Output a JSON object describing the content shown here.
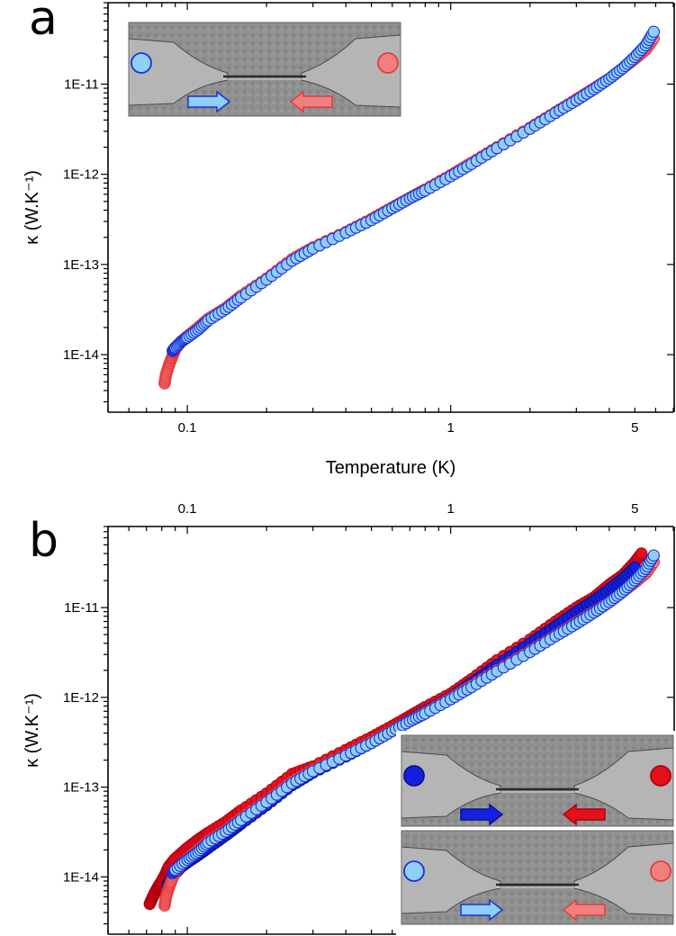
{
  "colors": {
    "red_light": "#f08080",
    "red_light_edge": "#e43b3b",
    "blue_light": "#8fd0f8",
    "blue_light_edge": "#1b2fd6",
    "red_dark": "#e4101a",
    "red_dark_edge": "#b00010",
    "blue_dark": "#1420e0",
    "blue_dark_edge": "#0a128a"
  },
  "chart_data": [
    {
      "panel": "a",
      "type": "scatter",
      "scale": {
        "x": "log",
        "y": "log"
      },
      "xlabel": "Temperature (K)",
      "ylabel": "κ (W.K⁻¹)",
      "xlim": [
        0.05,
        7.0
      ],
      "ylim": [
        2.3e-15,
        8e-11
      ],
      "xticks": [
        {
          "value": 0.1,
          "label": "0.1"
        },
        {
          "value": 1,
          "label": "1"
        },
        {
          "value": 5,
          "label": "5"
        }
      ],
      "yticks": [
        {
          "value": 1e-14,
          "label": "1E-14"
        },
        {
          "value": 1e-13,
          "label": "1E-13"
        },
        {
          "value": 1e-12,
          "label": "1E-12"
        },
        {
          "value": 1e-11,
          "label": "1E-11"
        }
      ],
      "inset": {
        "sample": "light",
        "arrows": [
          "right-blue",
          "left-red"
        ]
      },
      "series": [
        {
          "style": "red_light",
          "points": [
            [
              0.082,
              4.8e-15
            ],
            [
              0.083,
              6e-15
            ],
            [
              0.085,
              7.5e-15
            ],
            [
              0.087,
              9e-15
            ],
            [
              0.089,
              1.05e-14
            ],
            [
              0.09,
              1.15e-14
            ],
            [
              0.095,
              1.4e-14
            ],
            [
              0.1,
              1.6e-14
            ],
            [
              0.11,
              2e-14
            ],
            [
              0.12,
              2.5e-14
            ],
            [
              0.14,
              3.3e-14
            ],
            [
              0.16,
              4.5e-14
            ],
            [
              0.2,
              7e-14
            ],
            [
              0.25,
              1.15e-13
            ],
            [
              0.3,
              1.55e-13
            ],
            [
              0.4,
              2.3e-13
            ],
            [
              0.5,
              3.2e-13
            ],
            [
              0.6,
              4.3e-13
            ],
            [
              0.7,
              5.5e-13
            ],
            [
              0.8,
              6.8e-13
            ],
            [
              1.0,
              9.8e-13
            ],
            [
              1.2,
              1.35e-12
            ],
            [
              1.5,
              2e-12
            ],
            [
              2.0,
              3.3e-12
            ],
            [
              2.5,
              4.9e-12
            ],
            [
              3.0,
              6.8e-12
            ],
            [
              3.5,
              9e-12
            ],
            [
              4.0,
              1.15e-11
            ],
            [
              4.5,
              1.5e-11
            ],
            [
              5.0,
              1.9e-11
            ],
            [
              5.5,
              2.4e-11
            ],
            [
              5.9,
              3.2e-11
            ]
          ]
        },
        {
          "style": "blue_light",
          "points": [
            [
              0.088,
              1.1e-14
            ],
            [
              0.09,
              1.2e-14
            ],
            [
              0.095,
              1.4e-14
            ],
            [
              0.1,
              1.55e-14
            ],
            [
              0.11,
              1.9e-14
            ],
            [
              0.12,
              2.4e-14
            ],
            [
              0.14,
              3.2e-14
            ],
            [
              0.16,
              4.3e-14
            ],
            [
              0.2,
              6.8e-14
            ],
            [
              0.25,
              1.1e-13
            ],
            [
              0.3,
              1.5e-13
            ],
            [
              0.4,
              2.25e-13
            ],
            [
              0.5,
              3.1e-13
            ],
            [
              0.6,
              4.2e-13
            ],
            [
              0.7,
              5.4e-13
            ],
            [
              0.8,
              6.6e-13
            ],
            [
              1.0,
              9.5e-13
            ],
            [
              1.2,
              1.3e-12
            ],
            [
              1.5,
              1.95e-12
            ],
            [
              2.0,
              3.2e-12
            ],
            [
              2.5,
              4.8e-12
            ],
            [
              3.0,
              6.6e-12
            ],
            [
              3.5,
              8.8e-12
            ],
            [
              4.0,
              1.15e-11
            ],
            [
              4.5,
              1.5e-11
            ],
            [
              5.0,
              2e-11
            ],
            [
              5.5,
              2.7e-11
            ],
            [
              5.9,
              3.8e-11
            ]
          ]
        }
      ]
    },
    {
      "panel": "b",
      "type": "scatter",
      "scale": {
        "x": "log",
        "y": "log"
      },
      "xlabel": "",
      "ylabel": "κ (W.K⁻¹)",
      "xlim": [
        0.05,
        7.0
      ],
      "ylim": [
        2.3e-15,
        8e-11
      ],
      "xticks": [
        {
          "value": 0.1,
          "label": "0.1"
        },
        {
          "value": 1,
          "label": "1"
        },
        {
          "value": 5,
          "label": "5"
        }
      ],
      "yticks": [
        {
          "value": 1e-14,
          "label": "1E-14"
        },
        {
          "value": 1e-13,
          "label": "1E-13"
        },
        {
          "value": 1e-12,
          "label": "1E-12"
        },
        {
          "value": 1e-11,
          "label": "1E-11"
        }
      ],
      "inset": [
        {
          "sample": "dark",
          "arrows": [
            "right-blue",
            "left-red"
          ]
        },
        {
          "sample": "light",
          "arrows": [
            "right-blue",
            "left-red"
          ]
        }
      ],
      "series": [
        {
          "style": "red_dark",
          "points": [
            [
              0.072,
              5e-15
            ],
            [
              0.074,
              6e-15
            ],
            [
              0.076,
              7e-15
            ],
            [
              0.078,
              8e-15
            ],
            [
              0.08,
              9e-15
            ],
            [
              0.083,
              1.1e-14
            ],
            [
              0.085,
              1.3e-14
            ],
            [
              0.09,
              1.6e-14
            ],
            [
              0.1,
              2.1e-14
            ],
            [
              0.11,
              2.6e-14
            ],
            [
              0.12,
              3.1e-14
            ],
            [
              0.14,
              4.1e-14
            ],
            [
              0.16,
              5.5e-14
            ],
            [
              0.2,
              8.5e-14
            ],
            [
              0.25,
              1.4e-13
            ],
            [
              0.3,
              1.7e-13
            ],
            [
              0.4,
              2.6e-13
            ],
            [
              0.5,
              3.6e-13
            ],
            [
              0.6,
              4.8e-13
            ],
            [
              0.7,
              6.2e-13
            ],
            [
              0.8,
              7.8e-13
            ],
            [
              1.0,
              1.1e-12
            ],
            [
              1.2,
              1.6e-12
            ],
            [
              1.5,
              2.6e-12
            ],
            [
              2.0,
              4.4e-12
            ],
            [
              2.5,
              7e-12
            ],
            [
              3.0,
              1e-11
            ],
            [
              3.5,
              1.3e-11
            ],
            [
              4.0,
              1.8e-11
            ],
            [
              4.5,
              2.3e-11
            ],
            [
              5.0,
              3.2e-11
            ],
            [
              5.3,
              4e-11
            ]
          ]
        },
        {
          "style": "blue_dark",
          "points": [
            [
              0.084,
              8e-15
            ],
            [
              0.087,
              9.5e-15
            ],
            [
              0.09,
              1.1e-14
            ],
            [
              0.095,
              1.3e-14
            ],
            [
              0.1,
              1.45e-14
            ],
            [
              0.11,
              1.75e-14
            ],
            [
              0.12,
              2.1e-14
            ],
            [
              0.14,
              2.9e-14
            ],
            [
              0.16,
              3.9e-14
            ],
            [
              0.2,
              6.3e-14
            ],
            [
              0.25,
              1.05e-13
            ],
            [
              0.3,
              1.45e-13
            ],
            [
              0.4,
              2.2e-13
            ],
            [
              0.5,
              3.1e-13
            ],
            [
              0.6,
              4.3e-13
            ],
            [
              0.7,
              5.6e-13
            ],
            [
              0.8,
              7e-13
            ],
            [
              1.0,
              1e-12
            ],
            [
              1.2,
              1.45e-12
            ],
            [
              1.5,
              2.3e-12
            ],
            [
              2.0,
              4e-12
            ],
            [
              2.5,
              6.2e-12
            ],
            [
              3.0,
              9e-12
            ],
            [
              3.5,
              1.2e-11
            ],
            [
              4.0,
              1.6e-11
            ],
            [
              4.5,
              2.1e-11
            ],
            [
              5.0,
              2.8e-11
            ]
          ]
        },
        {
          "style": "red_light",
          "points": [
            [
              0.082,
              4.8e-15
            ],
            [
              0.083,
              6e-15
            ],
            [
              0.085,
              7.5e-15
            ],
            [
              0.087,
              9e-15
            ],
            [
              0.09,
              1.15e-14
            ],
            [
              0.1,
              1.6e-14
            ],
            [
              0.11,
              2e-14
            ],
            [
              0.12,
              2.5e-14
            ],
            [
              0.14,
              3.3e-14
            ],
            [
              0.16,
              4.5e-14
            ],
            [
              0.2,
              7e-14
            ],
            [
              0.25,
              1.15e-13
            ],
            [
              0.3,
              1.55e-13
            ],
            [
              0.4,
              2.3e-13
            ],
            [
              0.5,
              3.2e-13
            ],
            [
              0.6,
              4.3e-13
            ],
            [
              0.7,
              5.5e-13
            ],
            [
              0.8,
              6.8e-13
            ],
            [
              1.0,
              9.8e-13
            ],
            [
              1.2,
              1.35e-12
            ],
            [
              1.5,
              2e-12
            ],
            [
              2.0,
              3.3e-12
            ],
            [
              2.5,
              4.9e-12
            ],
            [
              3.0,
              6.8e-12
            ],
            [
              3.5,
              9e-12
            ],
            [
              4.0,
              1.15e-11
            ],
            [
              4.5,
              1.5e-11
            ],
            [
              5.0,
              1.9e-11
            ],
            [
              5.5,
              2.4e-11
            ],
            [
              5.9,
              3.2e-11
            ]
          ]
        },
        {
          "style": "blue_light",
          "points": [
            [
              0.088,
              1.1e-14
            ],
            [
              0.09,
              1.2e-14
            ],
            [
              0.1,
              1.55e-14
            ],
            [
              0.11,
              1.9e-14
            ],
            [
              0.12,
              2.4e-14
            ],
            [
              0.14,
              3.2e-14
            ],
            [
              0.16,
              4.3e-14
            ],
            [
              0.2,
              6.8e-14
            ],
            [
              0.25,
              1.1e-13
            ],
            [
              0.3,
              1.5e-13
            ],
            [
              0.4,
              2.25e-13
            ],
            [
              0.5,
              3.1e-13
            ],
            [
              0.6,
              4.2e-13
            ],
            [
              0.7,
              5.4e-13
            ],
            [
              0.8,
              6.6e-13
            ],
            [
              1.0,
              9.5e-13
            ],
            [
              1.2,
              1.3e-12
            ],
            [
              1.5,
              1.95e-12
            ],
            [
              2.0,
              3.2e-12
            ],
            [
              2.5,
              4.8e-12
            ],
            [
              3.0,
              6.6e-12
            ],
            [
              3.5,
              8.8e-12
            ],
            [
              4.0,
              1.15e-11
            ],
            [
              4.5,
              1.5e-11
            ],
            [
              5.0,
              2e-11
            ],
            [
              5.5,
              2.7e-11
            ],
            [
              5.9,
              3.8e-11
            ]
          ]
        }
      ]
    }
  ]
}
